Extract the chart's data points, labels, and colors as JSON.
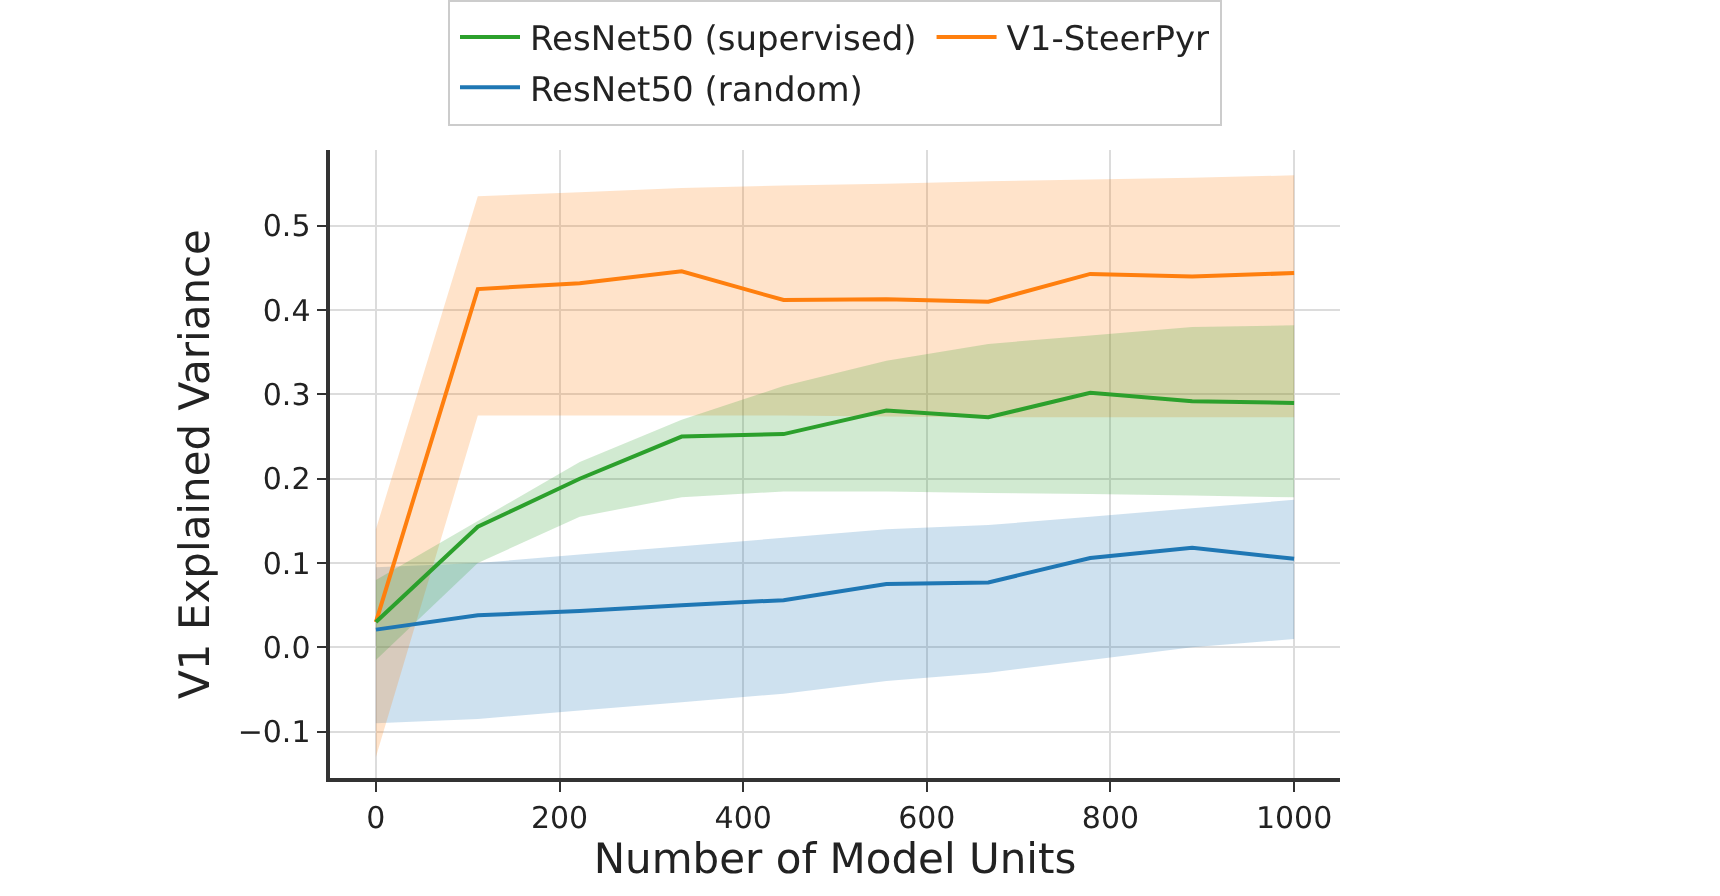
{
  "chart_data": {
    "type": "line",
    "xlabel": "Number of Model Units",
    "ylabel": "V1 Explained Variance",
    "x": [
      0,
      111,
      222,
      333,
      444,
      556,
      667,
      778,
      889,
      1000
    ],
    "series": [
      {
        "name": "ResNet50 (random)",
        "color": "#1f77b4",
        "values": [
          0.021,
          0.038,
          0.043,
          0.05,
          0.056,
          0.075,
          0.077,
          0.106,
          0.118,
          0.105
        ],
        "lower": [
          -0.09,
          -0.085,
          -0.075,
          -0.065,
          -0.055,
          -0.04,
          -0.03,
          -0.015,
          0.0,
          0.01
        ],
        "upper": [
          0.095,
          0.1,
          0.11,
          0.12,
          0.13,
          0.14,
          0.145,
          0.155,
          0.165,
          0.175
        ]
      },
      {
        "name": "V1-SteerPyr",
        "color": "#ff7f0e",
        "values": [
          0.03,
          0.425,
          0.432,
          0.446,
          0.412,
          0.413,
          0.41,
          0.443,
          0.44,
          0.444
        ],
        "lower": [
          -0.13,
          0.275,
          0.275,
          0.275,
          0.275,
          0.274,
          0.273,
          0.273,
          0.273,
          0.273
        ],
        "upper": [
          0.14,
          0.535,
          0.54,
          0.545,
          0.548,
          0.55,
          0.553,
          0.555,
          0.557,
          0.56
        ]
      },
      {
        "name": "ResNet50 (supervised)",
        "color": "#2ca02c",
        "values": [
          0.03,
          0.143,
          0.2,
          0.25,
          0.253,
          0.281,
          0.273,
          0.302,
          0.292,
          0.29
        ],
        "lower": [
          -0.015,
          0.1,
          0.155,
          0.178,
          0.185,
          0.185,
          0.183,
          0.182,
          0.18,
          0.178
        ],
        "upper": [
          0.08,
          0.15,
          0.22,
          0.27,
          0.31,
          0.34,
          0.36,
          0.37,
          0.38,
          0.382
        ]
      }
    ],
    "xlim": [
      -50,
      1050
    ],
    "xticks": [
      0,
      200,
      400,
      600,
      800,
      1000
    ],
    "ylim": [
      -0.155,
      0.59
    ],
    "yticks": [
      {
        "value": -0.1,
        "label": "−0.1"
      },
      {
        "value": 0.0,
        "label": "0.0"
      },
      {
        "value": 0.1,
        "label": "0.1"
      },
      {
        "value": 0.2,
        "label": "0.2"
      },
      {
        "value": 0.3,
        "label": "0.3"
      },
      {
        "value": 0.4,
        "label": "0.4"
      },
      {
        "value": 0.5,
        "label": "0.5"
      }
    ],
    "grid": true,
    "legend": "top",
    "marker": "none",
    "line_style": "solid"
  }
}
